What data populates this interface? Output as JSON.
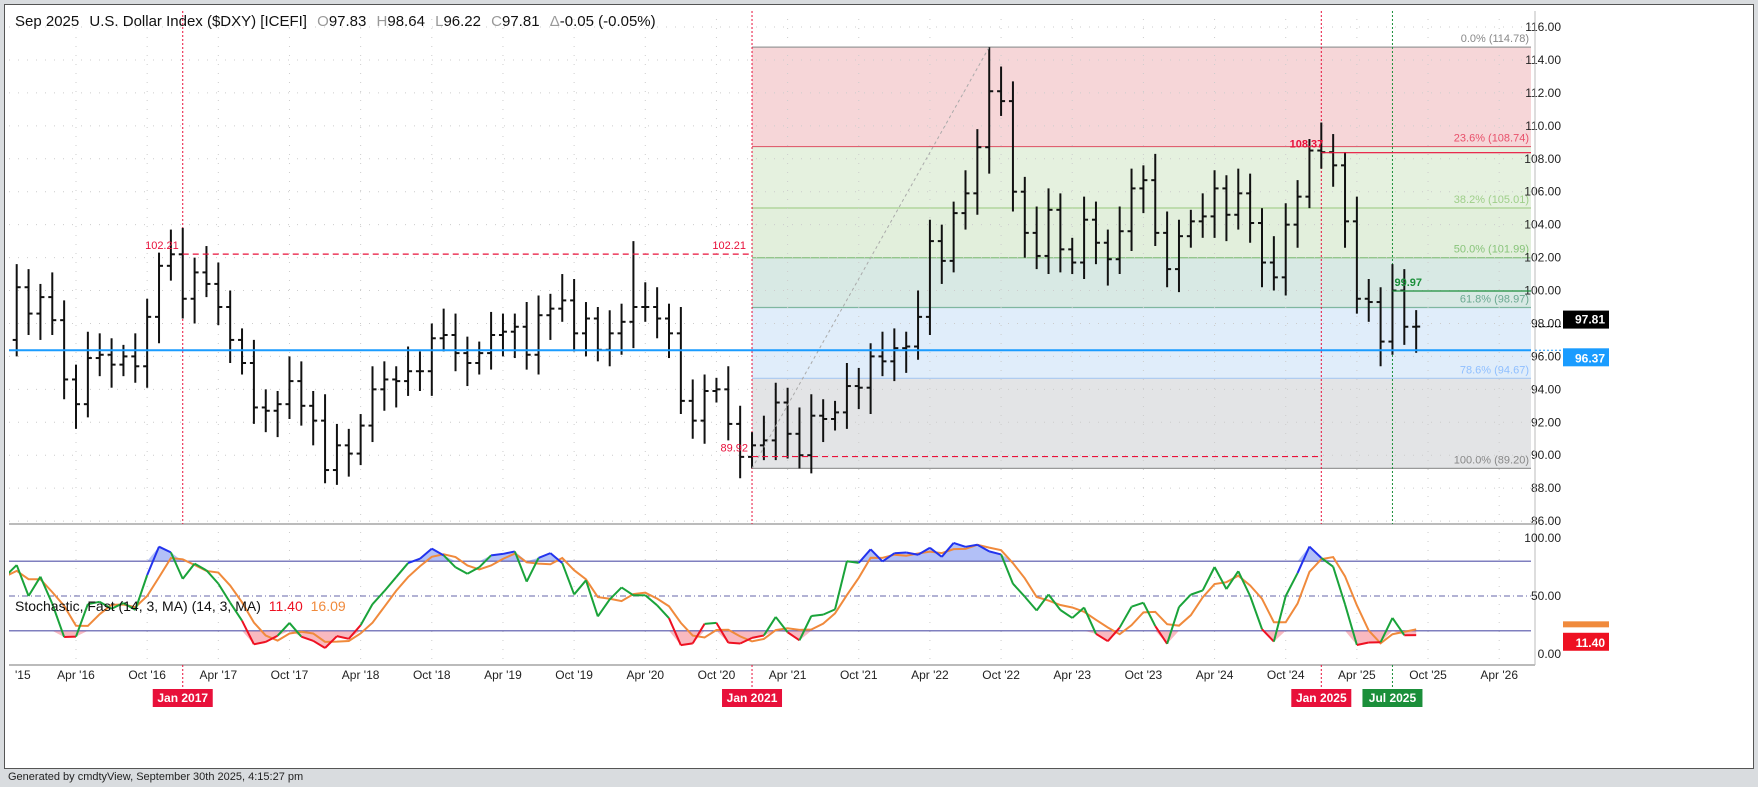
{
  "header": {
    "contract": "Sep 2025",
    "name": "U.S. Dollar Index ($DXY) [ICEFI]",
    "o_label": "O",
    "open": "97.83",
    "h_label": "H",
    "high": "98.64",
    "l_label": "L",
    "low": "96.22",
    "c_label": "C",
    "close": "97.81",
    "chg_label": "Δ",
    "change": "-0.05 (-0.05%)"
  },
  "stochastic": {
    "title": "Stochastic, Fast (14, 3, MA) (14, 3, MA)",
    "k_value": "11.40",
    "d_value": "16.09"
  },
  "footer": "Generated by cmdtyView, September 30th 2025, 4:15:27 pm",
  "colors": {
    "k_line": "#1aa33a",
    "d_line": "#f08a3c",
    "overbought": "#2233ee",
    "oversold": "#ee1122",
    "price_line": "#1a9cff",
    "annot_red": "#e8103a",
    "annot_green": "#1b8f3a"
  },
  "chart_data": {
    "type": "ohlc",
    "title": "Sep 2025 U.S. Dollar Index ($DXY) [ICEFI]",
    "periodicity": "monthly",
    "start": "2015-10",
    "closes": [
      97.0,
      100.2,
      98.6,
      99.6,
      98.2,
      94.6,
      93.1,
      95.9,
      96.1,
      95.5,
      96.0,
      95.4,
      98.4,
      101.5,
      102.2,
      99.5,
      101.1,
      100.4,
      99.0,
      97.0,
      95.6,
      92.9,
      92.7,
      93.1,
      94.5,
      93.0,
      92.1,
      89.1,
      90.6,
      90.1,
      91.8,
      94.0,
      94.6,
      94.5,
      95.1,
      95.1,
      97.1,
      97.3,
      96.2,
      95.6,
      96.2,
      97.3,
      97.5,
      97.8,
      96.1,
      98.5,
      98.9,
      99.4,
      97.4,
      98.3,
      96.4,
      97.4,
      98.1,
      99.0,
      99.0,
      98.3,
      97.4,
      93.3,
      92.1,
      93.9,
      94.0,
      91.9,
      89.9,
      90.6,
      90.9,
      93.2,
      91.3,
      90.0,
      92.4,
      92.2,
      92.6,
      94.2,
      94.1,
      96.0,
      95.7,
      96.5,
      96.6,
      98.4,
      103.0,
      101.8,
      104.7,
      105.9,
      108.7,
      112.1,
      111.5,
      106.0,
      103.5,
      102.1,
      104.9,
      102.5,
      101.7,
      104.3,
      102.9,
      101.9,
      103.6,
      106.2,
      106.7,
      103.5,
      101.3,
      103.3,
      104.2,
      104.5,
      106.2,
      104.6,
      105.9,
      104.1,
      101.7,
      100.8,
      104.0,
      105.7,
      108.5,
      108.4,
      107.6,
      104.2,
      99.5,
      99.3,
      96.9,
      100.0,
      97.8,
      97.81
    ],
    "high_overrides": {
      "2017-01": 103.8,
      "2020-03": 103.0,
      "2022-09": 114.78,
      "2025-01": 110.2
    },
    "low_overrides": {
      "2018-02": 88.2,
      "2021-01": 89.2,
      "2025-09": 96.22
    },
    "y_axis": {
      "min": 86,
      "max": 116,
      "step": 2,
      "ticks": [
        "116.00",
        "114.00",
        "112.00",
        "110.00",
        "108.00",
        "106.00",
        "104.00",
        "102.00",
        "100.00",
        "98.00",
        "96.00",
        "94.00",
        "92.00",
        "90.00",
        "88.00",
        "86.00"
      ]
    },
    "x_ticks": [
      "'15",
      "Apr '16",
      "Oct '16",
      "Apr '17",
      "Oct '17",
      "Apr '18",
      "Oct '18",
      "Apr '19",
      "Oct '19",
      "Apr '20",
      "Oct '20",
      "Apr '21",
      "Oct '21",
      "Apr '22",
      "Oct '22",
      "Apr '23",
      "Oct '23",
      "Apr '24",
      "Oct '24",
      "Apr '25",
      "Oct '25",
      "Apr '26"
    ],
    "fib": {
      "from": "2021-01",
      "levels": [
        {
          "pct": "0.0%",
          "value": 114.78,
          "label": "0.0% (114.78)"
        },
        {
          "pct": "23.6%",
          "value": 108.74,
          "label": "23.6% (108.74)"
        },
        {
          "pct": "38.2%",
          "value": 105.01,
          "label": "38.2% (105.01)"
        },
        {
          "pct": "50.0%",
          "value": 101.99,
          "label": "50.0% (101.99)"
        },
        {
          "pct": "61.8%",
          "value": 98.97,
          "label": "61.8% (98.97)"
        },
        {
          "pct": "78.6%",
          "value": 94.67,
          "label": "78.6% (94.67)"
        },
        {
          "pct": "100.0%",
          "value": 89.2,
          "label": "100.0% (89.20)"
        }
      ]
    },
    "annotations": [
      {
        "label": "102.21",
        "value": 102.21,
        "from": "2017-01",
        "to": "2021-01",
        "style": "red-dashed",
        "label2": "102.21"
      },
      {
        "label": "89.92",
        "value": 89.92,
        "from": "2021-01",
        "to": "2025-01",
        "style": "red-dashed"
      },
      {
        "label": "108.37",
        "value": 108.37,
        "from": "2025-01",
        "to": "end",
        "style": "red-solid"
      },
      {
        "label": "99.97",
        "value": 99.97,
        "from": "2025-07",
        "to": "end",
        "style": "green-solid"
      }
    ],
    "support_line": {
      "value": 96.37,
      "label": "96.37"
    },
    "last_price": {
      "value": 97.81,
      "label": "97.81"
    },
    "date_markers": [
      {
        "label": "Jan 2017",
        "date": "2017-01",
        "color": "red"
      },
      {
        "label": "Jan 2021",
        "date": "2021-01",
        "color": "red"
      },
      {
        "label": "Jan 2025",
        "date": "2025-01",
        "color": "red"
      },
      {
        "label": "Jul 2025",
        "date": "2025-07",
        "color": "green"
      }
    ],
    "stoch_axis": {
      "ticks": [
        "100.00",
        "50.00",
        "0.00"
      ],
      "overbought": 80,
      "oversold": 20,
      "mid": 50
    }
  }
}
